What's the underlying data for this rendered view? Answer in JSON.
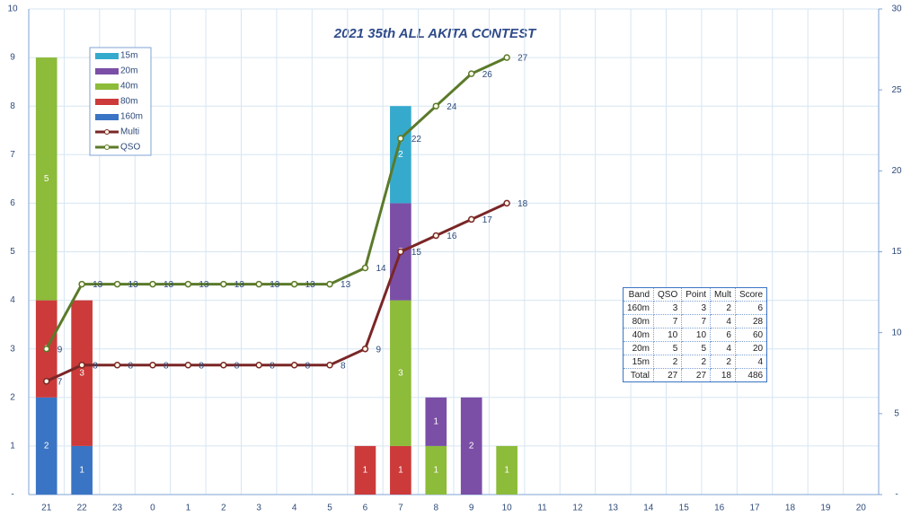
{
  "chart_data": {
    "type": "bar",
    "title": "2021 35th ALL AKITA CONTEST",
    "categories": [
      "21",
      "22",
      "23",
      "0",
      "1",
      "2",
      "3",
      "4",
      "5",
      "6",
      "7",
      "8",
      "9",
      "10",
      "11",
      "12",
      "13",
      "14",
      "15",
      "16",
      "17",
      "18",
      "19",
      "20"
    ],
    "series": [
      {
        "name": "160m",
        "color": "#3a74c4",
        "values": [
          2,
          1,
          null,
          null,
          null,
          null,
          null,
          null,
          null,
          null,
          null,
          null,
          null,
          null,
          null,
          null,
          null,
          null,
          null,
          null,
          null,
          null,
          null,
          null
        ]
      },
      {
        "name": "80m",
        "color": "#cc3a3a",
        "values": [
          2,
          3,
          null,
          null,
          null,
          null,
          null,
          null,
          null,
          1,
          1,
          null,
          null,
          null,
          null,
          null,
          null,
          null,
          null,
          null,
          null,
          null,
          null,
          null
        ]
      },
      {
        "name": "40m",
        "color": "#8dbb3a",
        "values": [
          5,
          null,
          null,
          null,
          null,
          null,
          null,
          null,
          null,
          null,
          3,
          1,
          null,
          1,
          null,
          null,
          null,
          null,
          null,
          null,
          null,
          null,
          null,
          null
        ]
      },
      {
        "name": "20m",
        "color": "#7b4fa6",
        "values": [
          null,
          null,
          null,
          null,
          null,
          null,
          null,
          null,
          null,
          null,
          2,
          1,
          2,
          null,
          null,
          null,
          null,
          null,
          null,
          null,
          null,
          null,
          null,
          null
        ]
      },
      {
        "name": "15m",
        "color": "#36aacd",
        "values": [
          null,
          null,
          null,
          null,
          null,
          null,
          null,
          null,
          null,
          null,
          2,
          null,
          null,
          null,
          null,
          null,
          null,
          null,
          null,
          null,
          null,
          null,
          null,
          null
        ]
      },
      {
        "name": "Multi",
        "type": "line",
        "axis": "y2",
        "color": "#7a2626",
        "values": [
          7,
          8,
          8,
          8,
          8,
          8,
          8,
          8,
          8,
          9,
          15,
          16,
          17,
          18,
          null,
          null,
          null,
          null,
          null,
          null,
          null,
          null,
          null,
          null
        ]
      },
      {
        "name": "QSO",
        "type": "line",
        "axis": "y2",
        "color": "#5b7a2a",
        "values": [
          9,
          13,
          13,
          13,
          13,
          13,
          13,
          13,
          13,
          14,
          22,
          24,
          26,
          27,
          null,
          null,
          null,
          null,
          null,
          null,
          null,
          null,
          null,
          null
        ]
      }
    ],
    "ylim": [
      0,
      10
    ],
    "yticks": [
      {
        "value": 0,
        "label": "-"
      },
      1,
      2,
      3,
      4,
      5,
      6,
      7,
      8,
      9,
      10
    ],
    "y2lim": [
      0,
      30
    ],
    "y2ticks": [
      {
        "value": 0,
        "label": "-"
      },
      5,
      10,
      15,
      20,
      25,
      30
    ],
    "grid": true
  },
  "table": {
    "header": [
      "Band",
      "QSO",
      "Point",
      "Mult",
      "Score"
    ],
    "rows": [
      [
        "160m",
        3,
        3,
        2,
        6
      ],
      [
        "80m",
        7,
        7,
        4,
        28
      ],
      [
        "40m",
        10,
        10,
        6,
        60
      ],
      [
        "20m",
        5,
        5,
        4,
        20
      ],
      [
        "15m",
        2,
        2,
        2,
        4
      ],
      [
        "Total",
        27,
        27,
        18,
        486
      ]
    ]
  }
}
